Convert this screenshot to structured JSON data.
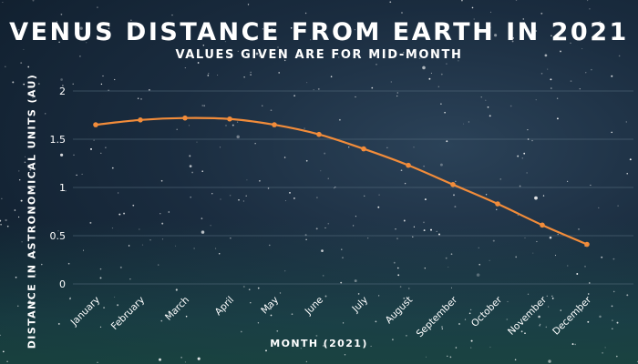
{
  "chart_data": {
    "type": "line",
    "title": "VENUS DISTANCE FROM EARTH IN 2021",
    "subtitle": "VALUES GIVEN ARE FOR MID-MONTH",
    "xlabel": "MONTH (2021)",
    "ylabel": "DISTANCE IN ASTRONOMICAL UNITS (AU)",
    "ylim": [
      0,
      2
    ],
    "yticks": [
      0,
      0.5,
      1,
      1.5,
      2
    ],
    "ytick_labels": [
      "0",
      "0.5",
      "1",
      "1.5",
      "2"
    ],
    "grid": true,
    "categories": [
      "January",
      "February",
      "March",
      "April",
      "May",
      "June",
      "July",
      "August",
      "September",
      "October",
      "November",
      "December"
    ],
    "series": [
      {
        "values": [
          1.65,
          1.7,
          1.72,
          1.71,
          1.65,
          1.55,
          1.4,
          1.23,
          1.03,
          0.83,
          0.61,
          0.41
        ]
      }
    ],
    "colors": {
      "line": "#f28c3a",
      "grid": "#5c7283",
      "text": "#ffffff"
    }
  }
}
